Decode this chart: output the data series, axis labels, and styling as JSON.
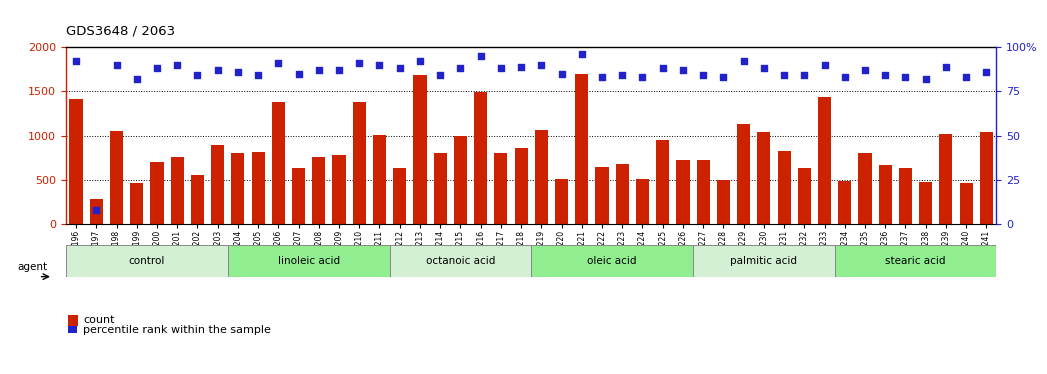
{
  "title": "GDS3648 / 2063",
  "categories": [
    "GSM525196",
    "GSM525197",
    "GSM525198",
    "GSM525199",
    "GSM525200",
    "GSM525201",
    "GSM525202",
    "GSM525203",
    "GSM525204",
    "GSM525205",
    "GSM525206",
    "GSM525207",
    "GSM525208",
    "GSM525209",
    "GSM525210",
    "GSM525211",
    "GSM525212",
    "GSM525213",
    "GSM525214",
    "GSM525215",
    "GSM525216",
    "GSM525217",
    "GSM525218",
    "GSM525219",
    "GSM525220",
    "GSM525221",
    "GSM525222",
    "GSM525223",
    "GSM525224",
    "GSM525225",
    "GSM525226",
    "GSM525227",
    "GSM525228",
    "GSM525229",
    "GSM525230",
    "GSM525231",
    "GSM525232",
    "GSM525233",
    "GSM525234",
    "GSM525235",
    "GSM525236",
    "GSM525237",
    "GSM525238",
    "GSM525239",
    "GSM525240",
    "GSM525241"
  ],
  "bar_values": [
    1420,
    290,
    1050,
    460,
    700,
    760,
    560,
    890,
    800,
    820,
    1380,
    640,
    760,
    780,
    1380,
    1010,
    630,
    1680,
    800,
    1000,
    1490,
    800,
    860,
    1060,
    510,
    1700,
    650,
    680,
    510,
    950,
    730,
    730,
    500,
    1130,
    1040,
    830,
    630,
    1440,
    490,
    800,
    670,
    640,
    480,
    1020,
    460,
    1040
  ],
  "dot_values": [
    92,
    8,
    90,
    82,
    88,
    90,
    84,
    87,
    86,
    84,
    91,
    85,
    87,
    87,
    91,
    90,
    88,
    92,
    84,
    88,
    95,
    88,
    89,
    90,
    85,
    96,
    83,
    84,
    83,
    88,
    87,
    84,
    83,
    92,
    88,
    84,
    84,
    90,
    83,
    87,
    84,
    83,
    82,
    89,
    83,
    86
  ],
  "bar_color": "#cc2200",
  "dot_color": "#2222cc",
  "ylim_left": [
    0,
    2000
  ],
  "ylim_right": [
    0,
    100
  ],
  "yticks_left": [
    0,
    500,
    1000,
    1500,
    2000
  ],
  "yticks_right": [
    0,
    25,
    50,
    75,
    100
  ],
  "groups": [
    {
      "label": "control",
      "start": 0,
      "end": 7
    },
    {
      "label": "linoleic acid",
      "start": 8,
      "end": 15
    },
    {
      "label": "octanoic acid",
      "start": 16,
      "end": 22
    },
    {
      "label": "oleic acid",
      "start": 23,
      "end": 30
    },
    {
      "label": "palmitic acid",
      "start": 31,
      "end": 37
    },
    {
      "label": "stearic acid",
      "start": 38,
      "end": 45
    }
  ],
  "group_colors": [
    "#d4f0d4",
    "#90ee90",
    "#d4f0d4",
    "#90ee90",
    "#d4f0d4",
    "#90ee90"
  ],
  "legend_count_color": "#cc2200",
  "legend_dot_color": "#2222cc",
  "background_color": "#ffffff",
  "agent_label": "agent"
}
